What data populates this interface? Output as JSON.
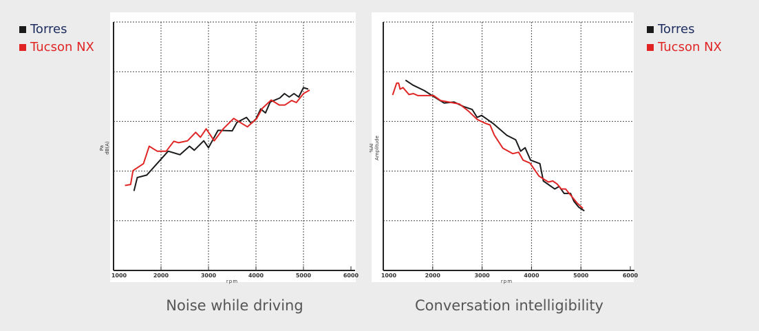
{
  "legend": [
    {
      "label": "Torres",
      "color": "#1a1a1a",
      "text_color": "#1b2b5e"
    },
    {
      "label": "Tucson NX",
      "color": "#e02424",
      "text_color": "#e02424"
    }
  ],
  "chart_data": [
    {
      "type": "line",
      "title": "Noise while driving",
      "xlabel": "rpm",
      "ylabel": [
        "Pa",
        "dB(A)"
      ],
      "xlim": [
        1000,
        6000
      ],
      "xticks": [
        "1000",
        "2000",
        "3000",
        "4000",
        "5000",
        "6000"
      ],
      "ylim": [
        0,
        5
      ],
      "y_ticks_labeled": false,
      "grid": true,
      "legend": "top-left",
      "series": [
        {
          "name": "Torres",
          "color": "#1a1a1a",
          "x": [
            1430,
            1500,
            1700,
            2000,
            2150,
            2400,
            2600,
            2700,
            2900,
            3000,
            3200,
            3500,
            3600,
            3800,
            3900,
            4000,
            4100,
            4200,
            4300,
            4500,
            4600,
            4700,
            4800,
            4900,
            5000,
            5100
          ],
          "y": [
            1.6,
            1.87,
            1.92,
            2.24,
            2.4,
            2.33,
            2.5,
            2.42,
            2.61,
            2.47,
            2.82,
            2.81,
            2.98,
            3.08,
            2.96,
            3.05,
            3.25,
            3.17,
            3.39,
            3.47,
            3.56,
            3.49,
            3.56,
            3.49,
            3.68,
            3.65
          ]
        },
        {
          "name": "Tucson NX",
          "color": "#e02424",
          "x": [
            1240,
            1360,
            1410,
            1630,
            1750,
            1920,
            2110,
            2270,
            2370,
            2560,
            2730,
            2830,
            2950,
            3120,
            3310,
            3530,
            3700,
            3820,
            4010,
            4130,
            4320,
            4490,
            4610,
            4750,
            4850,
            5000,
            5130
          ],
          "y": [
            1.71,
            1.73,
            2.01,
            2.15,
            2.5,
            2.4,
            2.4,
            2.6,
            2.57,
            2.61,
            2.78,
            2.68,
            2.85,
            2.61,
            2.85,
            3.06,
            2.96,
            2.89,
            3.05,
            3.26,
            3.43,
            3.33,
            3.33,
            3.42,
            3.38,
            3.56,
            3.63
          ]
        }
      ]
    },
    {
      "type": "line",
      "title": "Conversation intelligibility",
      "xlabel": "rpm",
      "ylabel": [
        "%AI",
        "Amplitude"
      ],
      "xlim": [
        1000,
        6000
      ],
      "xticks": [
        "1000",
        "2000",
        "3000",
        "4000",
        "5000",
        "6000"
      ],
      "ylim": [
        0,
        5
      ],
      "y_ticks_labeled": false,
      "grid": true,
      "legend": "top-right",
      "series": [
        {
          "name": "Torres",
          "color": "#1a1a1a",
          "x": [
            1450,
            1600,
            1830,
            2020,
            2230,
            2430,
            2620,
            2800,
            2900,
            2990,
            3220,
            3500,
            3680,
            3780,
            3870,
            3980,
            4170,
            4240,
            4470,
            4560,
            4660,
            4790,
            4860,
            4960,
            5070
          ],
          "y": [
            3.83,
            3.73,
            3.62,
            3.5,
            3.37,
            3.39,
            3.3,
            3.24,
            3.08,
            3.12,
            2.96,
            2.72,
            2.63,
            2.4,
            2.47,
            2.22,
            2.15,
            1.8,
            1.64,
            1.69,
            1.55,
            1.55,
            1.39,
            1.27,
            1.2
          ]
        },
        {
          "name": "Tucson NX",
          "color": "#e02424",
          "x": [
            1190,
            1270,
            1310,
            1340,
            1400,
            1520,
            1610,
            1700,
            2020,
            2160,
            2540,
            2720,
            2900,
            3070,
            3160,
            3250,
            3420,
            3620,
            3740,
            3830,
            3970,
            4150,
            4340,
            4430,
            4520,
            4600,
            4690,
            4830,
            4920,
            5040
          ],
          "y": [
            3.53,
            3.77,
            3.77,
            3.65,
            3.68,
            3.54,
            3.56,
            3.52,
            3.52,
            3.42,
            3.35,
            3.21,
            3.04,
            2.96,
            2.93,
            2.72,
            2.46,
            2.35,
            2.38,
            2.22,
            2.16,
            1.9,
            1.78,
            1.8,
            1.74,
            1.64,
            1.64,
            1.47,
            1.36,
            1.25
          ]
        }
      ]
    }
  ]
}
